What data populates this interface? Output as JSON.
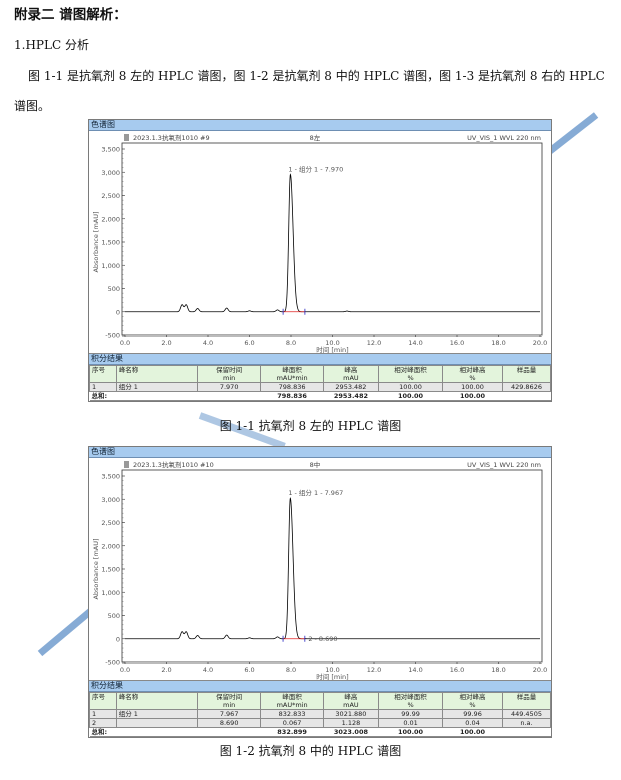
{
  "heading": "附录二  谱图解析：",
  "section": "1.HPLC 分析",
  "paragraph": "图 1-1 是抗氧剂 8 左的 HPLC 谱图，图 1-2 是抗氧剂 8 中的 HPLC 谱图，图 1-3 是抗氧剂 8 右的 HPLC 谱图。",
  "colors": {
    "panel_bar": "#a7cbef",
    "table_header": "#e3f4dc",
    "trace": "#000000",
    "baseline": "#e02020",
    "marker": "#2020c0"
  },
  "figures": [
    {
      "panel_title": "色谱图",
      "sample_label": "2023.1.3抗氧剂1010 #9",
      "sample_name": "8左",
      "detector": "UV_VIS_1 WVL 220 nm",
      "caption": "图 1-1  抗氧剂 8 左的 HPLC 谱图",
      "table_title": "积分结果",
      "columns": [
        [
          "序号",
          ""
        ],
        [
          "峰名称",
          ""
        ],
        [
          "保留时间",
          "min"
        ],
        [
          "峰面积",
          "mAU*min"
        ],
        [
          "峰高",
          "mAU"
        ],
        [
          "相对峰面积",
          "%"
        ],
        [
          "相对峰高",
          "%"
        ],
        [
          "样品量",
          ""
        ]
      ],
      "rows": [
        [
          "1",
          "组分 1",
          "7.970",
          "798.836",
          "2953.482",
          "100.00",
          "100.00",
          "429.8626"
        ]
      ],
      "total": [
        "总和:",
        "",
        "",
        "798.836",
        "2953.482",
        "100.00",
        "100.00",
        ""
      ]
    },
    {
      "panel_title": "色谱图",
      "sample_label": "2023.1.3抗氧剂1010 #10",
      "sample_name": "8中",
      "detector": "UV_VIS_1 WVL 220 nm",
      "caption": "图 1-2  抗氧剂 8 中的 HPLC 谱图",
      "table_title": "积分结果",
      "columns": [
        [
          "序号",
          ""
        ],
        [
          "峰名称",
          ""
        ],
        [
          "保留时间",
          "min"
        ],
        [
          "峰面积",
          "mAU*min"
        ],
        [
          "峰高",
          "mAU"
        ],
        [
          "相对峰面积",
          "%"
        ],
        [
          "相对峰高",
          "%"
        ],
        [
          "样品量",
          ""
        ]
      ],
      "rows": [
        [
          "1",
          "组分 1",
          "7.967",
          "832.833",
          "3021.880",
          "99.99",
          "99.96",
          "449.4505"
        ],
        [
          "2",
          "",
          "8.690",
          "0.067",
          "1.128",
          "0.01",
          "0.04",
          "n.a."
        ]
      ],
      "total": [
        "总和:",
        "",
        "",
        "832.899",
        "3023.008",
        "100.00",
        "100.00",
        ""
      ]
    }
  ],
  "chart_data": [
    {
      "type": "line",
      "xlabel": "时间 [min]",
      "ylabel": "Absorbance [mAU]",
      "xlim": [
        0,
        20
      ],
      "ylim": [
        -500,
        3500
      ],
      "xticks": [
        "0.0",
        "2.0",
        "4.0",
        "6.0",
        "8.0",
        "10.0",
        "12.0",
        "14.0",
        "16.0",
        "18.0",
        "20.0"
      ],
      "yticks": [
        "-500",
        "0",
        "500",
        "1,000",
        "1,500",
        "2,000",
        "2,500",
        "3,000",
        "3,500"
      ],
      "grid": false,
      "peaks": [
        [
          2.75,
          150
        ],
        [
          2.95,
          150
        ],
        [
          3.5,
          70
        ],
        [
          4.9,
          80
        ],
        [
          6.0,
          20
        ],
        [
          7.35,
          40
        ],
        [
          7.97,
          2953
        ],
        [
          10.7,
          15
        ]
      ],
      "peak_labels": [
        "1 - 组分 1 - 7.970"
      ]
    },
    {
      "type": "line",
      "xlabel": "时间 [min]",
      "ylabel": "Absorbance [mAU]",
      "xlim": [
        0,
        20
      ],
      "ylim": [
        -500,
        3500
      ],
      "xticks": [
        "0.0",
        "2.0",
        "4.0",
        "6.0",
        "8.0",
        "10.0",
        "12.0",
        "14.0",
        "16.0",
        "18.0",
        "20.0"
      ],
      "yticks": [
        "-500",
        "0",
        "500",
        "1,000",
        "1,500",
        "2,000",
        "2,500",
        "3,000",
        "3,500"
      ],
      "grid": false,
      "peaks": [
        [
          2.75,
          150
        ],
        [
          2.95,
          150
        ],
        [
          3.5,
          70
        ],
        [
          4.9,
          80
        ],
        [
          6.0,
          20
        ],
        [
          7.35,
          40
        ],
        [
          7.967,
          3022
        ],
        [
          8.69,
          1
        ]
      ],
      "peak_labels": [
        "1 - 组分 1 - 7.967",
        "2 - 8.690"
      ]
    }
  ]
}
